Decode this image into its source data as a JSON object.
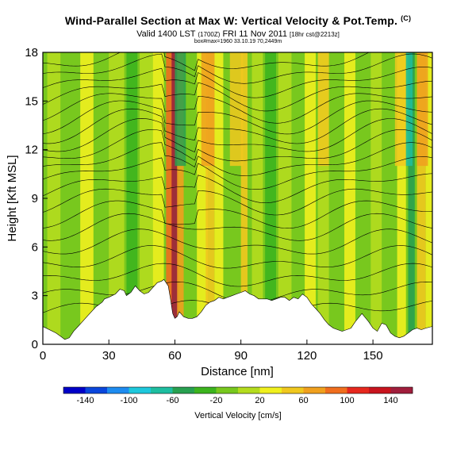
{
  "header": {
    "title": "Wind-Parallel Section at Max W: Vertical Velocity & Pot.Temp.",
    "title_mark": "(C)",
    "valid": "Valid 1400 LST",
    "valid_utc": "(1700Z)",
    "valid_date": "FRI 11 Nov 2011",
    "valid_run": "[18hr cst@2213z]",
    "info": "box#max=1960 33.10.19 70,2449m"
  },
  "chart_data": {
    "type": "heatmap",
    "title": "Wind-Parallel Section at Max W: Vertical Velocity & Pot.Temp.",
    "xlabel": "Distance [nm]",
    "ylabel": "Height [Kft MSL]",
    "xlim": [
      0,
      177
    ],
    "ylim": [
      0,
      18
    ],
    "xticks": [
      0,
      30,
      60,
      90,
      120,
      150
    ],
    "yticks": [
      0,
      3,
      6,
      9,
      12,
      15,
      18
    ],
    "colorbar": {
      "label": "Vertical Velocity [cm/s]",
      "ticks": [
        -140,
        -100,
        -60,
        -20,
        20,
        60,
        100,
        140
      ],
      "range": [
        -160,
        160
      ],
      "colors": [
        "#0000c8",
        "#0a46dc",
        "#1e8cf0",
        "#1ec8dc",
        "#1ebea0",
        "#28a050",
        "#3cb41e",
        "#78c81e",
        "#b4dc1e",
        "#f0f01e",
        "#f0c81e",
        "#f0a01e",
        "#f06e1e",
        "#e6281e",
        "#c8141e",
        "#a01e3c"
      ]
    },
    "terrain": {
      "x": [
        0,
        6,
        8,
        10,
        12,
        14,
        16,
        18,
        20,
        24,
        27,
        28,
        30,
        33,
        35,
        37,
        38,
        40,
        42,
        44,
        46,
        48,
        50,
        52,
        54,
        55,
        57,
        58,
        59,
        60,
        61,
        62,
        64,
        66,
        68,
        70,
        72,
        74,
        76,
        78,
        80,
        82,
        84,
        86,
        88,
        90,
        92,
        94,
        96,
        98,
        100,
        102,
        104,
        106,
        108,
        110,
        112,
        114,
        116,
        118,
        120,
        122,
        124,
        126,
        128,
        130,
        132,
        134,
        136,
        138,
        140,
        142,
        145,
        148,
        150,
        152,
        154,
        156,
        158,
        160,
        162,
        164,
        166,
        168,
        170,
        172,
        174,
        177
      ],
      "height": [
        1.1,
        0.7,
        0.5,
        0.3,
        0.4,
        0.8,
        1.1,
        1.4,
        1.7,
        2.3,
        2.6,
        2.8,
        2.9,
        3.1,
        3.4,
        3.3,
        3.0,
        3.2,
        3.6,
        3.3,
        3.1,
        3.2,
        3.5,
        3.8,
        3.9,
        4.0,
        3.6,
        2.8,
        1.9,
        1.6,
        1.7,
        2.0,
        1.7,
        1.6,
        1.6,
        1.7,
        2.0,
        2.4,
        2.6,
        2.7,
        2.9,
        2.8,
        2.9,
        3.0,
        3.1,
        3.2,
        3.3,
        3.1,
        3.0,
        2.8,
        2.8,
        2.8,
        2.7,
        2.8,
        2.9,
        2.9,
        2.7,
        2.9,
        2.8,
        3.1,
        2.9,
        2.5,
        2.2,
        1.9,
        1.5,
        1.2,
        1.0,
        0.9,
        0.8,
        0.9,
        1.0,
        1.4,
        1.9,
        1.4,
        1.0,
        0.8,
        1.3,
        1.2,
        0.7,
        0.5,
        0.4,
        0.5,
        0.7,
        0.9,
        1.0,
        0.9,
        1.0,
        1.1
      ]
    },
    "velocity_bands": [
      {
        "x": 2,
        "w": 6,
        "value": 10
      },
      {
        "x": 10,
        "w": 5,
        "value": -20
      },
      {
        "x": 17,
        "w": 6,
        "value": 20
      },
      {
        "x": 24,
        "w": 5,
        "value": -20
      },
      {
        "x": 30,
        "w": 7,
        "value": 15
      },
      {
        "x": 38,
        "w": 5,
        "value": -25
      },
      {
        "x": 44,
        "w": 6,
        "value": 10
      },
      {
        "x": 50,
        "w": 5,
        "value": 30
      },
      {
        "x": 56,
        "w": 3,
        "value": 90
      },
      {
        "x": 58.5,
        "w": 3,
        "value": 145
      },
      {
        "x": 61,
        "w": 3,
        "value": 60
      },
      {
        "x": 65,
        "w": 4,
        "value": -20
      },
      {
        "x": 70,
        "w": 5,
        "value": 25
      },
      {
        "x": 74,
        "w": 4,
        "value": 55
      },
      {
        "x": 78,
        "w": 4,
        "value": 30
      },
      {
        "x": 83,
        "w": 5,
        "value": -20
      },
      {
        "x": 90,
        "w": 3,
        "value": 40
      },
      {
        "x": 95,
        "w": 5,
        "value": 15
      },
      {
        "x": 101,
        "w": 5,
        "value": -30
      },
      {
        "x": 107,
        "w": 6,
        "value": 15
      },
      {
        "x": 113,
        "w": 6,
        "value": -20
      },
      {
        "x": 119,
        "w": 5,
        "value": 30
      },
      {
        "x": 125,
        "w": 5,
        "value": 10
      },
      {
        "x": 131,
        "w": 5,
        "value": -20
      },
      {
        "x": 137,
        "w": 5,
        "value": 20
      },
      {
        "x": 143,
        "w": 5,
        "value": -15
      },
      {
        "x": 149,
        "w": 5,
        "value": 15
      },
      {
        "x": 155,
        "w": 5,
        "value": -20
      },
      {
        "x": 161,
        "w": 4,
        "value": 35
      },
      {
        "x": 166,
        "w": 3,
        "value": -60
      },
      {
        "x": 170,
        "w": 4,
        "value": 50
      },
      {
        "x": 174,
        "w": 3,
        "value": 20
      }
    ],
    "upper_bands": [
      {
        "x": 60,
        "w": 5,
        "value": -50
      },
      {
        "x": 72,
        "w": 6,
        "value": 60
      },
      {
        "x": 85,
        "w": 6,
        "value": 50
      },
      {
        "x": 125,
        "w": 5,
        "value": 50
      },
      {
        "x": 160,
        "w": 5,
        "value": 40
      },
      {
        "x": 165,
        "w": 3,
        "value": -70
      },
      {
        "x": 170,
        "w": 5,
        "value": 60
      }
    ],
    "isentropes": [
      {
        "base": 2.2,
        "amp": 0.8
      },
      {
        "base": 3.2,
        "amp": 1.0
      },
      {
        "base": 4.2,
        "amp": 1.2
      },
      {
        "base": 5.2,
        "amp": 1.4
      },
      {
        "base": 6.2,
        "amp": 1.5
      },
      {
        "base": 7.2,
        "amp": 1.6
      },
      {
        "base": 8.1,
        "amp": 1.7
      },
      {
        "base": 9.0,
        "amp": 1.8
      },
      {
        "base": 9.8,
        "amp": 2.0
      },
      {
        "base": 10.6,
        "amp": 2.2
      },
      {
        "base": 11.3,
        "amp": 2.3
      },
      {
        "base": 12.0,
        "amp": 2.4
      },
      {
        "base": 12.7,
        "amp": 2.4
      },
      {
        "base": 13.4,
        "amp": 2.4
      },
      {
        "base": 14.1,
        "amp": 2.3
      },
      {
        "base": 14.8,
        "amp": 2.2
      },
      {
        "base": 15.5,
        "amp": 2.1
      },
      {
        "base": 16.2,
        "amp": 2.0
      },
      {
        "base": 16.9,
        "amp": 1.9
      },
      {
        "base": 17.6,
        "amp": 1.8
      }
    ]
  }
}
